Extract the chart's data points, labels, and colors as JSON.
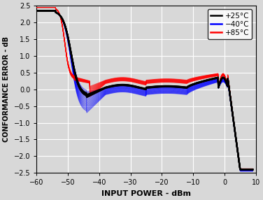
{
  "xlabel": "INPUT POWER - dBm",
  "ylabel": "CONFORMANCE ERROR - dB",
  "xlim": [
    -60,
    10
  ],
  "ylim": [
    -2.5,
    2.5
  ],
  "xticks": [
    -60,
    -50,
    -40,
    -30,
    -20,
    -10,
    0,
    10
  ],
  "yticks": [
    -2.5,
    -2.0,
    -1.5,
    -1.0,
    -0.5,
    0.0,
    0.5,
    1.0,
    1.5,
    2.0,
    2.5
  ],
  "legend": [
    {
      "label": "+25°C",
      "color": "black"
    },
    {
      "label": "−40°C",
      "color": "blue"
    },
    {
      "label": "+85°C",
      "color": "red"
    }
  ],
  "n_black": 6,
  "n_blue": 18,
  "n_red": 18,
  "background_color": "#d8d8d8",
  "grid_color": "white",
  "lw_black": 1.6,
  "lw_blue": 0.7,
  "lw_red": 0.7,
  "alpha_black": 0.95,
  "alpha_blue": 0.55,
  "alpha_red": 0.55,
  "xlabel_fontsize": 8,
  "ylabel_fontsize": 7,
  "tick_fontsize": 7,
  "legend_fontsize": 7.5
}
